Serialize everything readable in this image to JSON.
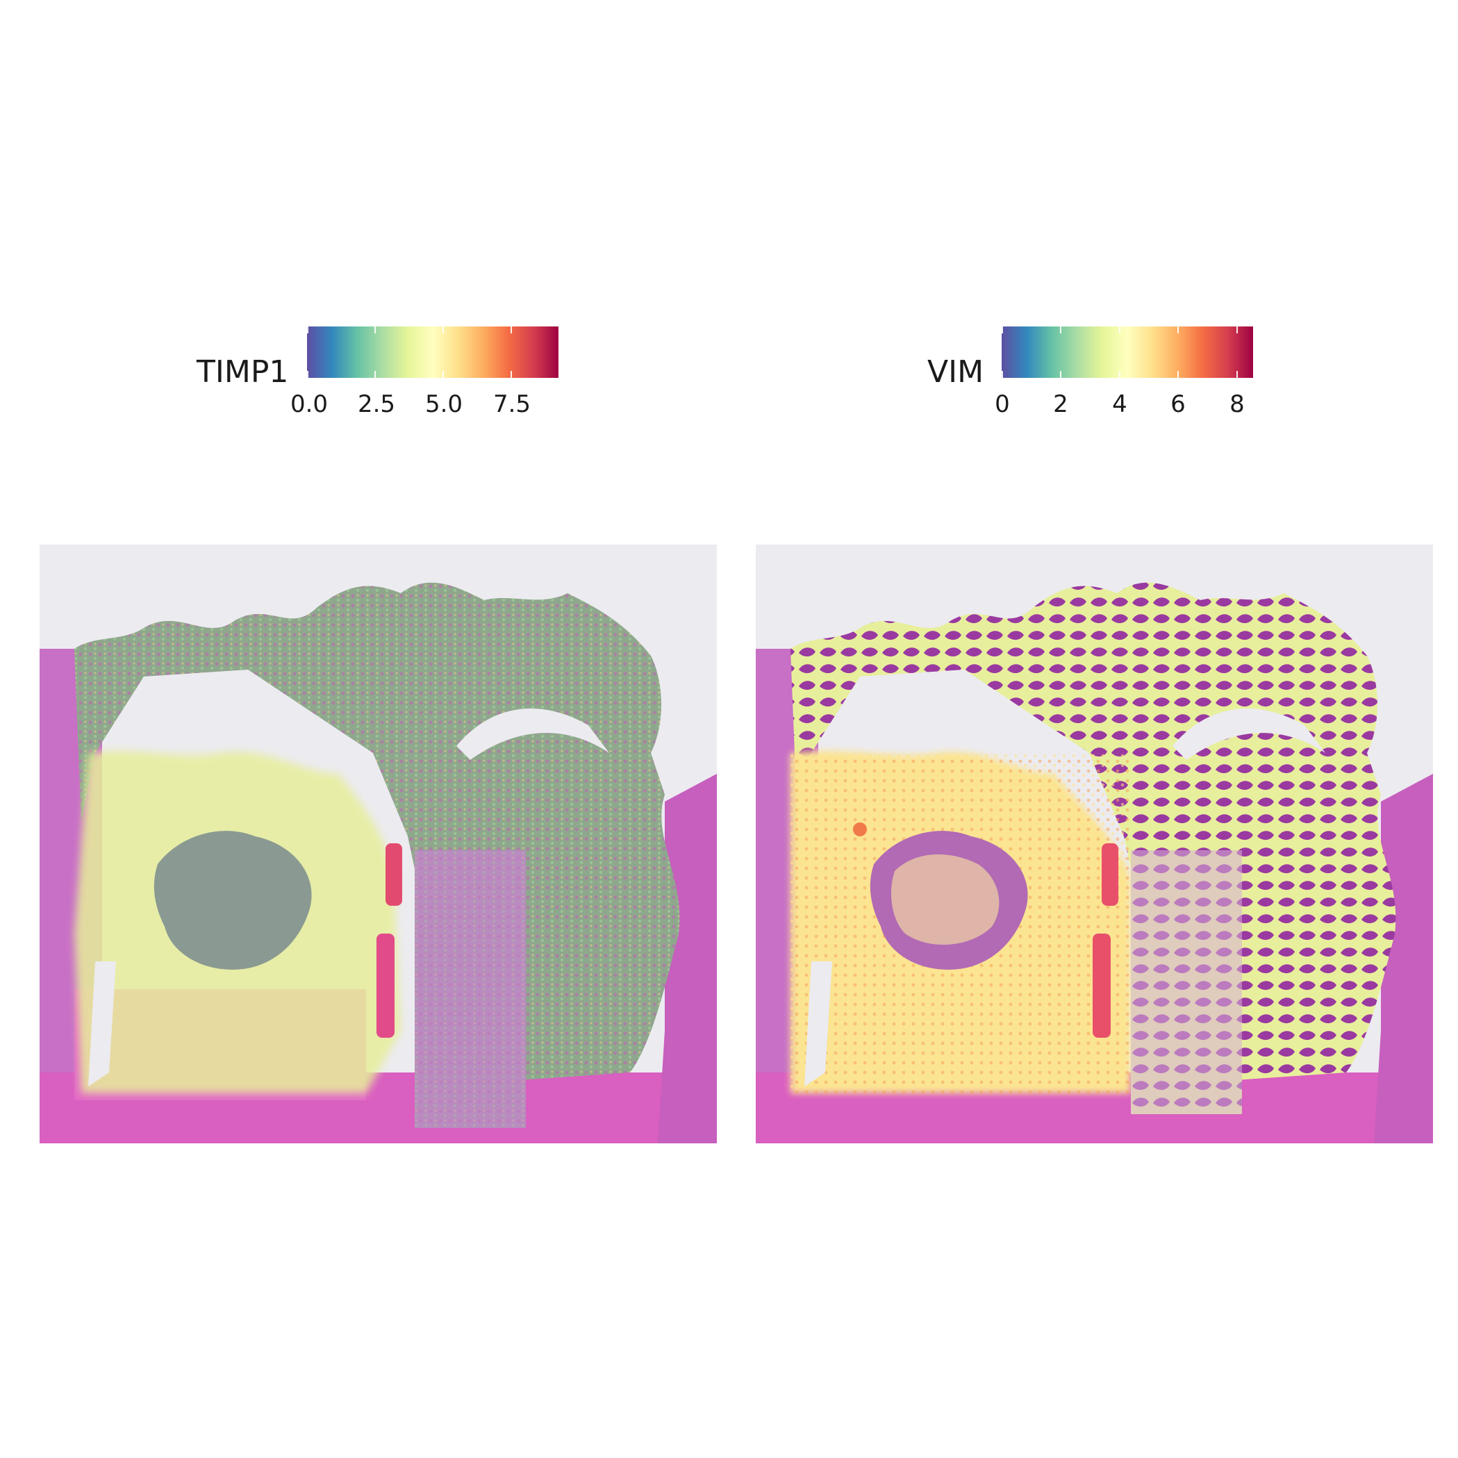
{
  "chart_data": [
    {
      "type": "scatter",
      "subtype": "spatial-transcriptomics-overlay-on-he-image",
      "feature": "TIMP1",
      "legend": {
        "title": "TIMP1",
        "placement": "top",
        "range": [
          0,
          9.2
        ],
        "ticks": [
          "0.0",
          "2.5",
          "5.0",
          "7.5"
        ],
        "tick_values": [
          0,
          2.5,
          5.0,
          7.5
        ],
        "palette": [
          "#5e4fa2",
          "#3288bd",
          "#66c2a5",
          "#abdda4",
          "#e6f598",
          "#ffffbf",
          "#fee08b",
          "#fdae61",
          "#f46d43",
          "#d53e4f",
          "#9e0142"
        ]
      },
      "axes": "none",
      "grid": false
    },
    {
      "type": "scatter",
      "subtype": "spatial-transcriptomics-overlay-on-he-image",
      "feature": "VIM",
      "legend": {
        "title": "VIM",
        "placement": "top",
        "range": [
          0,
          8.5
        ],
        "ticks": [
          "0",
          "2",
          "4",
          "6",
          "8"
        ],
        "tick_values": [
          0,
          2,
          4,
          6,
          8
        ],
        "palette": [
          "#5e4fa2",
          "#3288bd",
          "#66c2a5",
          "#abdda4",
          "#e6f598",
          "#ffffbf",
          "#fee08b",
          "#fdae61",
          "#f46d43",
          "#d53e4f",
          "#9e0142"
        ]
      },
      "axes": "none",
      "grid": false
    }
  ]
}
